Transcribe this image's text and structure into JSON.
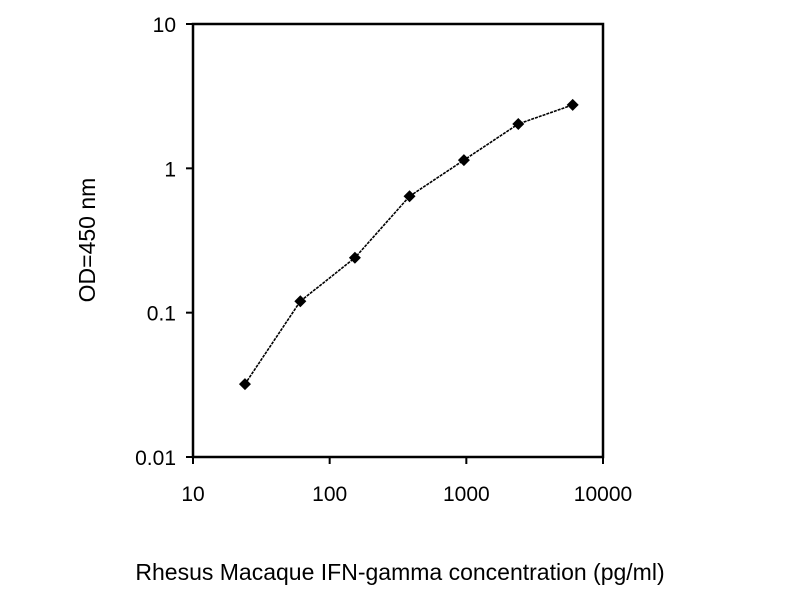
{
  "chart_data": {
    "type": "line",
    "title": "",
    "xlabel": "Rhesus Macaque IFN-gamma concentration (pg/ml)",
    "ylabel": "OD=450 nm",
    "xscale": "log",
    "yscale": "log",
    "xlim": [
      10,
      10000
    ],
    "ylim": [
      0.01,
      10
    ],
    "xticks": [
      "10",
      "100",
      "1000",
      "10000"
    ],
    "yticks": [
      "0.01",
      "0.1",
      "1",
      "10"
    ],
    "grid": false,
    "legend": "none",
    "series": [
      {
        "x": [
          24,
          61,
          153,
          384,
          960,
          2400,
          6000
        ],
        "y": [
          0.032,
          0.12,
          0.24,
          0.64,
          1.14,
          2.03,
          2.75
        ],
        "color": "#000000",
        "marker": "diamond"
      }
    ]
  }
}
